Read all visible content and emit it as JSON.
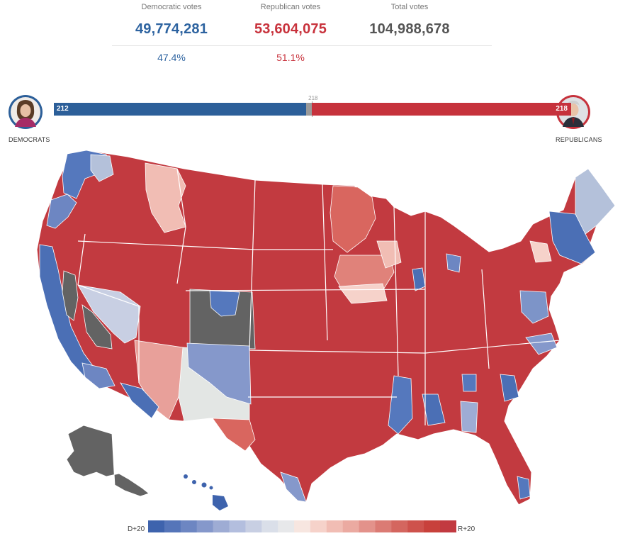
{
  "totals": {
    "democratic": {
      "label": "Democratic votes",
      "votes": "49,774,281",
      "percent": "47.4%",
      "color": "#2d63a0"
    },
    "republican": {
      "label": "Republican votes",
      "votes": "53,604,075",
      "percent": "51.1%",
      "color": "#c8323c"
    },
    "total": {
      "label": "Total votes",
      "votes": "104,988,678"
    }
  },
  "seats": {
    "democrats": {
      "label": "DEMOCRATS",
      "count": "212",
      "seats": 212,
      "color": "#2c5f99"
    },
    "republicans": {
      "label": "REPUBLICANS",
      "count": "218",
      "seats": 218,
      "color": "#c6323c"
    },
    "majority_label": "218",
    "majority_value": 218,
    "total_seats": 435
  },
  "map": {
    "state_fill": {
      "WA": "#5578bd",
      "OR": "#c23a40",
      "CA": "#c23a40",
      "NV": "#c8d0e0",
      "ID": "#c23a40",
      "MT": "#c23a40",
      "WY": "#c23a40",
      "UT": "#c23a40",
      "AZ": "#e8a09a",
      "CO": "#c23a40",
      "NM": "#e3e6e4",
      "ND": "#c23a40",
      "SD": "#c23a40",
      "NE": "#c23a40",
      "KS": "#c23a40",
      "OK": "#c23a40",
      "TX": "#c23a40",
      "MN": "#d9665f",
      "IA": "#e0827a",
      "MO": "#c23a40",
      "AR": "#c23a40",
      "LA": "#c23a40",
      "WI": "#c23a40",
      "IL": "#c23a40",
      "MI": "#c23a40",
      "IN": "#c23a40",
      "OH": "#c23a40",
      "KY": "#c23a40",
      "TN": "#c23a40",
      "MS": "#c23a40",
      "AL": "#c23a40",
      "GA": "#c23a40",
      "FL": "#c23a40",
      "SC": "#c23a40",
      "NC": "#c23a40",
      "VA": "#c23a40",
      "WV": "#c23a40",
      "PA": "#c23a40",
      "NY": "#c23a40",
      "ME": "#b4c1da",
      "VT": "#4b6fb5",
      "NH": "#4b6fb5",
      "MA": "#4b6fb5",
      "NJ": "#c23a40",
      "MD": "#7d94c8",
      "AK": "#636363",
      "HI": "#3e63ad"
    },
    "legend": {
      "left_label": "D+20",
      "right_label": "R+20",
      "steps": [
        "#3e63ad",
        "#5575b9",
        "#6d86c2",
        "#8598cb",
        "#9eacd4",
        "#b3bede",
        "#c8cfe3",
        "#dadfe9",
        "#e7e8ea",
        "#f7e6e0",
        "#f6d2ca",
        "#f1bdb4",
        "#ebaaa1",
        "#e3928b",
        "#db7b74",
        "#d4665f",
        "#ce524c",
        "#c8413b",
        "#c23a40"
      ]
    }
  }
}
